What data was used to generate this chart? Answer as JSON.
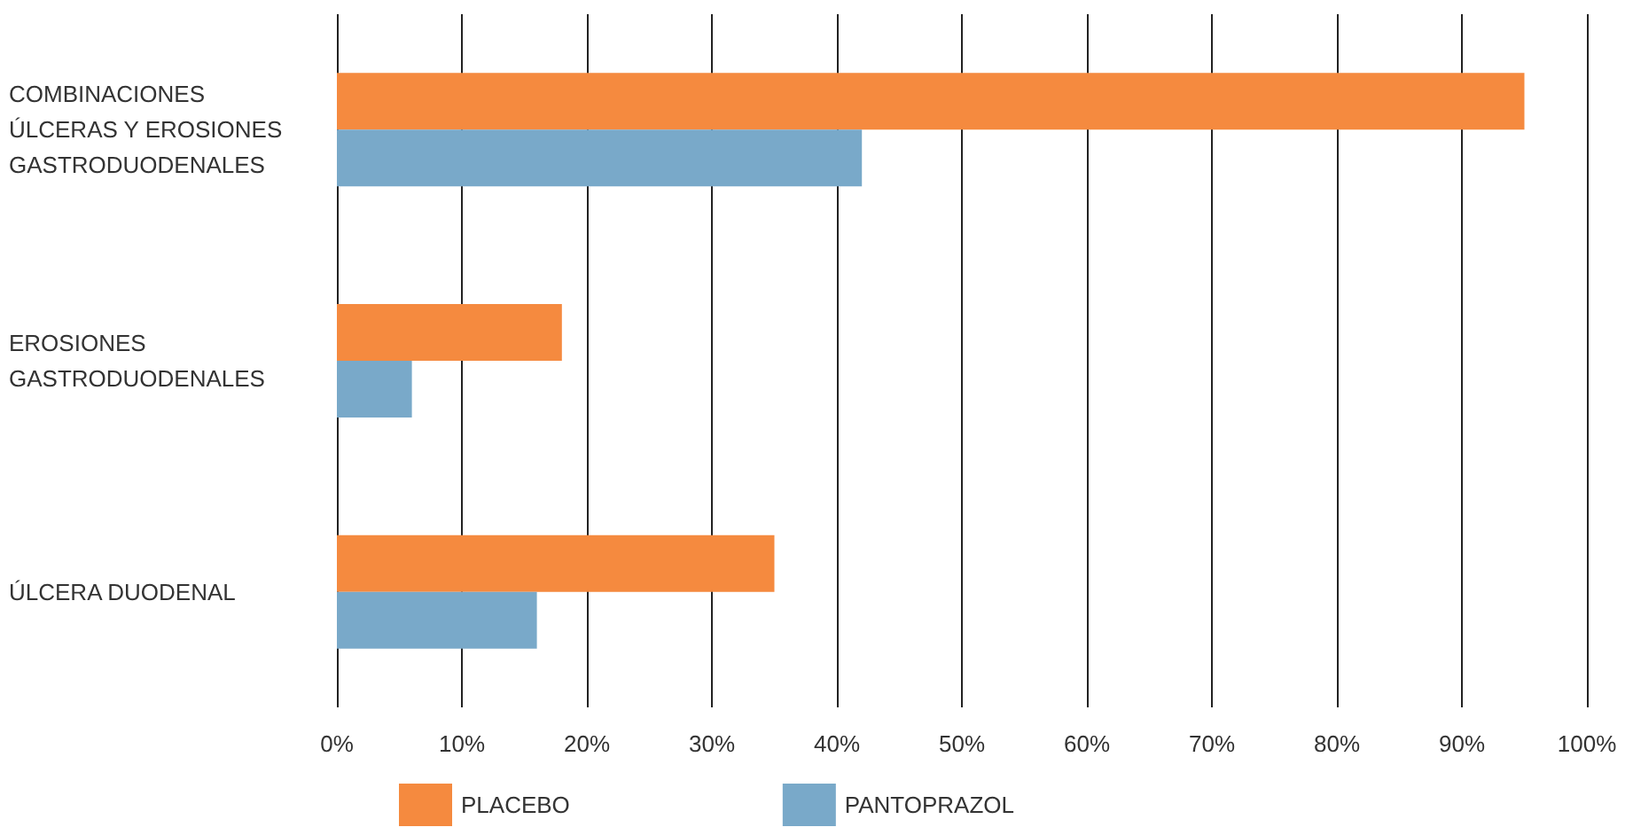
{
  "chart_data": {
    "type": "bar",
    "orientation": "horizontal",
    "categories": [
      "COMBINACIONES ÚLCERAS Y EROSIONES GASTRODUODENALES",
      "EROSIONES GASTRODUODENALES",
      "ÚLCERA DUODENAL"
    ],
    "series": [
      {
        "name": "PLACEBO",
        "color": "#f58a3f",
        "values": [
          95,
          18,
          35
        ]
      },
      {
        "name": "PANTOPRAZOL",
        "color": "#79a9c9",
        "values": [
          42,
          6,
          16
        ]
      }
    ],
    "xlim": [
      0,
      100
    ],
    "xticks": [
      {
        "value": 0,
        "label": "0%"
      },
      {
        "value": 10,
        "label": "10%"
      },
      {
        "value": 20,
        "label": "20%"
      },
      {
        "value": 30,
        "label": "30%"
      },
      {
        "value": 40,
        "label": "40%"
      },
      {
        "value": 50,
        "label": "50%"
      },
      {
        "value": 60,
        "label": "60%"
      },
      {
        "value": 70,
        "label": "70%"
      },
      {
        "value": 80,
        "label": "80%"
      },
      {
        "value": 90,
        "label": "90%"
      },
      {
        "value": 100,
        "label": "100%"
      }
    ],
    "grid": "x",
    "legend": "bottom"
  }
}
